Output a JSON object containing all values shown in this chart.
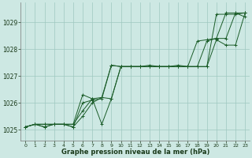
{
  "background_color": "#cde8e3",
  "grid_color": "#9fc8c0",
  "line_color": "#1a5c28",
  "xlabel": "Graphe pression niveau de la mer (hPa)",
  "xlim": [
    -0.5,
    23.5
  ],
  "ylim": [
    1024.6,
    1029.75
  ],
  "yticks": [
    1025,
    1026,
    1027,
    1028,
    1029
  ],
  "xticks": [
    0,
    1,
    2,
    3,
    4,
    5,
    6,
    7,
    8,
    9,
    10,
    11,
    12,
    13,
    14,
    15,
    16,
    17,
    18,
    19,
    20,
    21,
    22,
    23
  ],
  "series": [
    [
      1025.1,
      1025.2,
      1025.1,
      1025.2,
      1025.2,
      1025.1,
      1025.5,
      1026.0,
      1026.2,
      1027.4,
      1027.35,
      1027.35,
      1027.35,
      1027.35,
      1027.35,
      1027.35,
      1027.35,
      1027.35,
      1027.35,
      1027.35,
      1029.3,
      1029.3,
      1029.3,
      1029.35
    ],
    [
      1025.1,
      1025.2,
      1025.1,
      1025.2,
      1025.2,
      1025.1,
      1026.0,
      1026.1,
      1026.15,
      1027.4,
      1027.35,
      1027.35,
      1027.35,
      1027.4,
      1027.35,
      1027.35,
      1027.4,
      1027.35,
      1027.35,
      1028.3,
      1028.4,
      1029.35,
      1029.35,
      1029.35
    ],
    [
      1025.1,
      1025.2,
      1025.2,
      1025.2,
      1025.2,
      1025.2,
      1025.7,
      1026.15,
      1026.2,
      1026.15,
      1027.35,
      1027.35,
      1027.35,
      1027.35,
      1027.35,
      1027.35,
      1027.35,
      1027.35,
      1028.3,
      1028.35,
      1028.4,
      1028.4,
      1029.35,
      1029.2
    ],
    [
      1025.1,
      1025.2,
      1025.2,
      1025.2,
      1025.2,
      1025.2,
      1026.3,
      1026.15,
      1025.2,
      1026.15,
      1027.35,
      1027.35,
      1027.35,
      1027.35,
      1027.35,
      1027.35,
      1027.35,
      1027.35,
      1027.35,
      1027.35,
      1028.35,
      1028.15,
      1028.15,
      1029.35
    ]
  ]
}
